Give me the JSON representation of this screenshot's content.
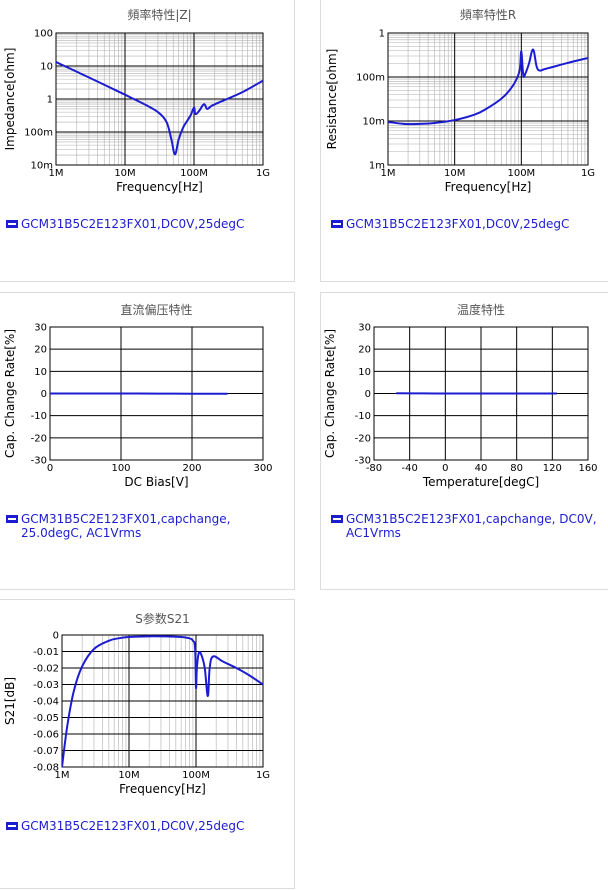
{
  "colors": {
    "series": "#1c1cd1",
    "grid_major": "#000000",
    "grid_minor": "#b0b0b0",
    "panel_border": "#dcdcdc"
  },
  "panels": [
    {
      "title": "頻率特性|Z|",
      "legend": [
        "GCM31B5C2E123FX01,DC0V,25degC"
      ]
    },
    {
      "title": "頻率特性R",
      "legend": [
        "GCM31B5C2E123FX01,DC0V,25degC"
      ]
    },
    {
      "title": "直流偏压特性",
      "legend": [
        "GCM31B5C2E123FX01,capchange,",
        "25.0degC, AC1Vrms"
      ]
    },
    {
      "title": "温度特性",
      "legend": [
        "GCM31B5C2E123FX01,capchange, DC0V,",
        "AC1Vrms"
      ]
    },
    {
      "title": "S参数S21",
      "legend": [
        "GCM31B5C2E123FX01,DC0V,25degC"
      ]
    }
  ],
  "chart_data": [
    {
      "type": "line",
      "title": "頻率特性|Z|",
      "xlabel": "Frequency[Hz]",
      "ylabel": "Impedance[ohm]",
      "xscale": "log",
      "yscale": "log",
      "xlim": [
        1000000,
        1000000000
      ],
      "ylim": [
        0.01,
        100
      ],
      "xticks": [
        1000000,
        10000000,
        100000000,
        1000000000
      ],
      "xticklabels": [
        "1M",
        "10M",
        "100M",
        "1G"
      ],
      "yticks": [
        0.01,
        0.1,
        1,
        10,
        100
      ],
      "yticklabels": [
        "10m",
        "100m",
        "1",
        "10",
        "100"
      ],
      "grid": true,
      "series": [
        {
          "x": [
            1000000,
            2000000,
            5000000,
            10000000,
            20000000,
            30000000,
            40000000,
            47000000,
            53000000,
            60000000,
            70000000,
            80000000,
            90000000,
            100000000,
            105000000,
            120000000,
            140000000,
            155000000,
            180000000,
            250000000,
            500000000,
            1000000000
          ],
          "y": [
            13.2,
            6.7,
            2.7,
            1.35,
            0.66,
            0.4,
            0.2,
            0.06,
            0.021,
            0.06,
            0.14,
            0.22,
            0.33,
            0.55,
            0.35,
            0.45,
            0.7,
            0.5,
            0.62,
            0.85,
            1.6,
            3.6
          ]
        }
      ]
    },
    {
      "type": "line",
      "title": "頻率特性R",
      "xlabel": "Frequency[Hz]",
      "ylabel": "Resistance[ohm]",
      "xscale": "log",
      "yscale": "log",
      "xlim": [
        1000000,
        1000000000
      ],
      "ylim": [
        0.001,
        1
      ],
      "xticks": [
        1000000,
        10000000,
        100000000,
        1000000000
      ],
      "xticklabels": [
        "1M",
        "10M",
        "100M",
        "1G"
      ],
      "yticks": [
        0.001,
        0.01,
        0.1,
        1
      ],
      "yticklabels": [
        "1m",
        "10m",
        "100m",
        "1"
      ],
      "grid": true,
      "series": [
        {
          "x": [
            1000000,
            1500000,
            2000000,
            3000000,
            5000000,
            10000000,
            20000000,
            30000000,
            50000000,
            70000000,
            85000000,
            95000000,
            100000000,
            107000000,
            115000000,
            130000000,
            150000000,
            170000000,
            190000000,
            220000000,
            300000000,
            500000000,
            1000000000
          ],
          "y": [
            0.0095,
            0.0088,
            0.0085,
            0.0086,
            0.009,
            0.0105,
            0.014,
            0.019,
            0.032,
            0.055,
            0.09,
            0.15,
            0.38,
            0.11,
            0.12,
            0.2,
            0.42,
            0.17,
            0.14,
            0.15,
            0.17,
            0.21,
            0.27
          ]
        }
      ]
    },
    {
      "type": "line",
      "title": "直流偏压特性",
      "xlabel": "DC Bias[V]",
      "ylabel": "Cap. Change Rate[%]",
      "xlim": [
        0,
        300
      ],
      "ylim": [
        -30,
        30
      ],
      "xticks": [
        0,
        100,
        200,
        300
      ],
      "yticks": [
        30,
        20,
        10,
        0,
        -10,
        -20,
        -30
      ],
      "grid": true,
      "series": [
        {
          "x": [
            0,
            50,
            100,
            150,
            200,
            250
          ],
          "y": [
            0,
            0,
            0,
            -0.05,
            -0.1,
            -0.1
          ]
        }
      ]
    },
    {
      "type": "line",
      "title": "温度特性",
      "xlabel": "Temperature[degC]",
      "ylabel": "Cap. Change Rate[%]",
      "xlim": [
        -80,
        160
      ],
      "ylim": [
        -30,
        30
      ],
      "xticks": [
        -80,
        -40,
        0,
        40,
        80,
        120,
        160
      ],
      "yticks": [
        30,
        20,
        10,
        0,
        -10,
        -20,
        -30
      ],
      "grid": true,
      "series": [
        {
          "x": [
            -55,
            -25,
            0,
            25,
            50,
            85,
            125
          ],
          "y": [
            0.1,
            0.05,
            0,
            0,
            0,
            0,
            0
          ]
        }
      ]
    },
    {
      "type": "line",
      "title": "S参数S21",
      "xlabel": "Frequency[Hz]",
      "ylabel": "S21[dB]",
      "xscale": "log",
      "xlim": [
        1000000,
        1000000000
      ],
      "ylim": [
        -0.08,
        0
      ],
      "xticks": [
        1000000,
        10000000,
        100000000,
        1000000000
      ],
      "xticklabels": [
        "1M",
        "10M",
        "100M",
        "1G"
      ],
      "yticks": [
        0,
        -0.01,
        -0.02,
        -0.03,
        -0.04,
        -0.05,
        -0.06,
        -0.07,
        -0.08
      ],
      "grid": true,
      "series": [
        {
          "x": [
            1000000,
            1200000,
            1500000,
            2000000,
            3000000,
            5000000,
            7000000,
            10000000,
            20000000,
            40000000,
            60000000,
            80000000,
            90000000,
            97000000,
            100000000,
            103000000,
            110000000,
            120000000,
            135000000,
            150000000,
            160000000,
            180000000,
            250000000,
            400000000,
            600000000,
            1000000000
          ],
          "y": [
            -0.08,
            -0.055,
            -0.034,
            -0.019,
            -0.0085,
            -0.0035,
            -0.002,
            -0.0012,
            -0.0008,
            -0.0009,
            -0.0012,
            -0.002,
            -0.0035,
            -0.008,
            -0.032,
            -0.02,
            -0.011,
            -0.012,
            -0.02,
            -0.037,
            -0.02,
            -0.013,
            -0.016,
            -0.02,
            -0.024,
            -0.03
          ]
        }
      ]
    }
  ]
}
